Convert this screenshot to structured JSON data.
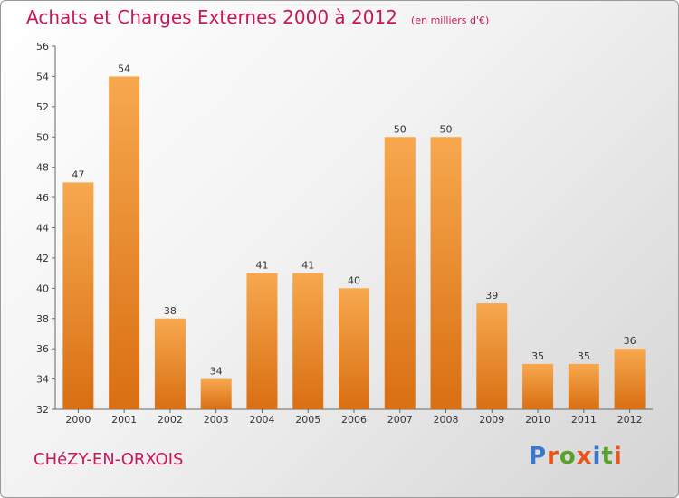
{
  "title": "Achats et Charges Externes 2000 à 2012",
  "unit": "(en milliers d'€)",
  "commune": "CHéZY-EN-ORXOIS",
  "brand": "Proxiti",
  "brand_colors": [
    "#3a78c9",
    "#e8541c",
    "#5aa02c",
    "#e8541c",
    "#3a78c9",
    "#5aa02c",
    "#e8541c"
  ],
  "colors": {
    "bar_light": "#f7a84e",
    "bar_dark": "#d96f12",
    "title": "#c8185a"
  },
  "chart_data": {
    "type": "bar",
    "categories": [
      "2000",
      "2001",
      "2002",
      "2003",
      "2004",
      "2005",
      "2006",
      "2007",
      "2008",
      "2009",
      "2010",
      "2011",
      "2012"
    ],
    "values": [
      47,
      54,
      38,
      34,
      41,
      41,
      40,
      50,
      50,
      39,
      35,
      35,
      36
    ],
    "ylim": [
      32,
      56
    ],
    "yticks": [
      32,
      34,
      36,
      38,
      40,
      42,
      44,
      46,
      48,
      50,
      52,
      54,
      56
    ],
    "grid": false,
    "legend": "none"
  }
}
